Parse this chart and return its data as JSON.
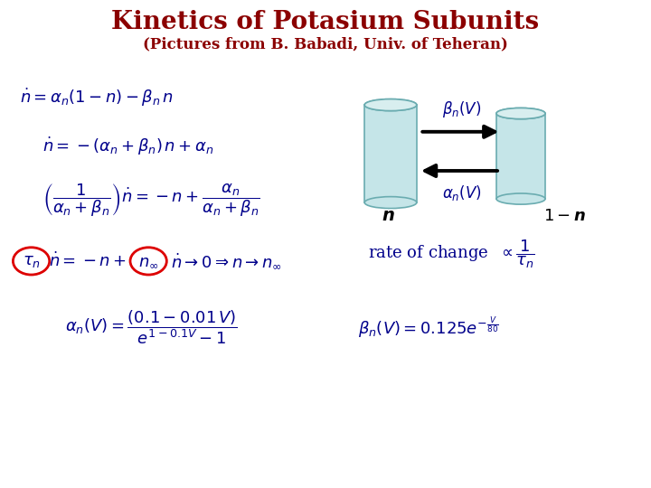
{
  "title": "Kinetics of Potasium Subunits",
  "subtitle": "(Pictures from B. Babadi, Univ. of Teheran)",
  "title_color": "#8B0000",
  "subtitle_color": "#8B0000",
  "bg_color": "#FFFFFF",
  "eq_color": "#00008B",
  "label_color": "#000033",
  "cylinder_color": "#C5E5E8",
  "cylinder_top": "#D8EEEF",
  "cylinder_edge": "#6AACB0",
  "arrow_color": "#000000",
  "circle_color": "#DD0000",
  "title_fontsize": 20,
  "subtitle_fontsize": 12,
  "eq_fontsize": 13,
  "label_fontsize": 12
}
